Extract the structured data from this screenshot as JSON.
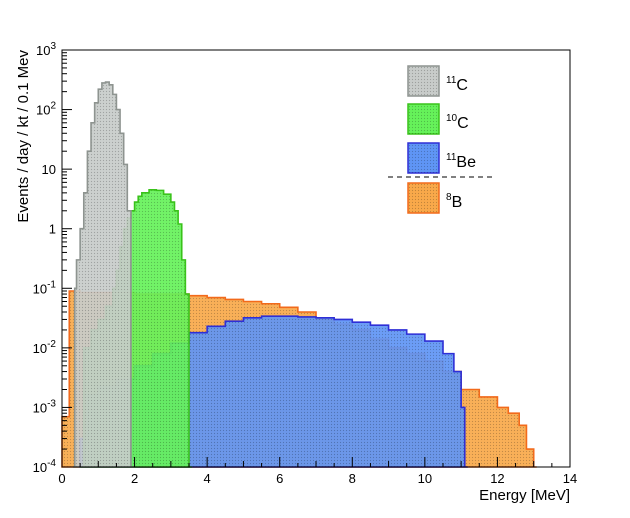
{
  "chart_data": {
    "type": "histogram",
    "title": "",
    "xlabel": "Energy [MeV]",
    "ylabel": "Events / day / kt / 0.1 Mev",
    "xlim": [
      0,
      14
    ],
    "ylim_log10": [
      -4,
      3
    ],
    "yscale": "log",
    "x_ticks": [
      "0",
      "2",
      "4",
      "6",
      "8",
      "10",
      "12",
      "14"
    ],
    "y_ticks": [
      {
        "base": "10",
        "exp": "-4"
      },
      {
        "base": "10",
        "exp": "-3"
      },
      {
        "base": "10",
        "exp": "-2"
      },
      {
        "base": "10",
        "exp": "-1"
      },
      {
        "base": "1",
        "exp": ""
      },
      {
        "base": "10",
        "exp": ""
      },
      {
        "base": "10",
        "exp": "2"
      },
      {
        "base": "10",
        "exp": "3"
      }
    ],
    "legend_position": "top-right",
    "series": [
      {
        "name": "8B",
        "mass": "8",
        "element": "B",
        "fill": "#f9a94a",
        "stroke": "#f26a1b",
        "points": [
          [
            0,
            0.0007
          ],
          [
            0.2,
            0.09
          ],
          [
            0.5,
            0.085
          ],
          [
            1,
            0.085
          ],
          [
            1.5,
            0.085
          ],
          [
            2,
            0.08
          ],
          [
            2.5,
            0.08
          ],
          [
            3,
            0.08
          ],
          [
            3.5,
            0.075
          ],
          [
            4,
            0.07
          ],
          [
            4.5,
            0.065
          ],
          [
            5,
            0.06
          ],
          [
            5.5,
            0.055
          ],
          [
            6,
            0.048
          ],
          [
            6.5,
            0.04
          ],
          [
            7,
            0.03
          ],
          [
            7.5,
            0.025
          ],
          [
            8,
            0.02
          ],
          [
            8.5,
            0.014
          ],
          [
            9,
            0.01
          ],
          [
            9.5,
            0.008
          ],
          [
            10,
            0.006
          ],
          [
            10.5,
            0.004
          ],
          [
            11,
            0.002
          ],
          [
            11.3,
            0.002
          ],
          [
            11.5,
            0.0015
          ],
          [
            12,
            0.001
          ],
          [
            12.3,
            0.0008
          ],
          [
            12.6,
            0.0005
          ],
          [
            12.8,
            0.0002
          ],
          [
            13,
            0.0001
          ]
        ]
      },
      {
        "name": "11Be",
        "mass": "11",
        "element": "Be",
        "fill": "#5f95f5",
        "stroke": "#2e2fd6",
        "points": [
          [
            0.5,
            0.0003
          ],
          [
            0.7,
            0.0016
          ],
          [
            1,
            0.0022
          ],
          [
            1.5,
            0.003
          ],
          [
            2,
            0.005
          ],
          [
            2.5,
            0.008
          ],
          [
            3,
            0.012
          ],
          [
            3.5,
            0.018
          ],
          [
            4,
            0.023
          ],
          [
            4.5,
            0.028
          ],
          [
            5,
            0.032
          ],
          [
            5.5,
            0.034
          ],
          [
            6,
            0.034
          ],
          [
            6.5,
            0.033
          ],
          [
            7,
            0.032
          ],
          [
            7.5,
            0.03
          ],
          [
            8,
            0.027
          ],
          [
            8.5,
            0.024
          ],
          [
            9,
            0.02
          ],
          [
            9.5,
            0.017
          ],
          [
            10,
            0.013
          ],
          [
            10.5,
            0.008
          ],
          [
            10.8,
            0.004
          ],
          [
            11,
            0.001
          ],
          [
            11.1,
            0.0001
          ]
        ]
      },
      {
        "name": "10C",
        "mass": "10",
        "element": "C",
        "fill": "#66f25a",
        "stroke": "#39c21a",
        "points": [
          [
            0.5,
            0.0001
          ],
          [
            0.6,
            0.01
          ],
          [
            0.8,
            0.02
          ],
          [
            1,
            0.03
          ],
          [
            1.2,
            0.05
          ],
          [
            1.4,
            0.1
          ],
          [
            1.5,
            0.2
          ],
          [
            1.6,
            0.5
          ],
          [
            1.7,
            1
          ],
          [
            1.8,
            1.5
          ],
          [
            1.9,
            2
          ],
          [
            2,
            2.8
          ],
          [
            2.1,
            3.5
          ],
          [
            2.2,
            4
          ],
          [
            2.4,
            4.5
          ],
          [
            2.6,
            4.4
          ],
          [
            2.8,
            3.8
          ],
          [
            3,
            2.8
          ],
          [
            3.1,
            2
          ],
          [
            3.2,
            1.2
          ],
          [
            3.3,
            0.3
          ],
          [
            3.4,
            0.08
          ],
          [
            3.5,
            0.0001
          ]
        ]
      },
      {
        "name": "11C",
        "mass": "11",
        "element": "C",
        "fill": "#c8ccca",
        "stroke": "#8e9490",
        "points": [
          [
            0.3,
            0.0001
          ],
          [
            0.35,
            0.1
          ],
          [
            0.4,
            0.3
          ],
          [
            0.5,
            1
          ],
          [
            0.6,
            4
          ],
          [
            0.7,
            20
          ],
          [
            0.8,
            60
          ],
          [
            0.9,
            130
          ],
          [
            1,
            220
          ],
          [
            1.1,
            280
          ],
          [
            1.2,
            290
          ],
          [
            1.3,
            260
          ],
          [
            1.4,
            180
          ],
          [
            1.5,
            100
          ],
          [
            1.6,
            40
          ],
          [
            1.7,
            12
          ],
          [
            1.8,
            2
          ],
          [
            1.9,
            0.0001
          ]
        ]
      }
    ]
  }
}
